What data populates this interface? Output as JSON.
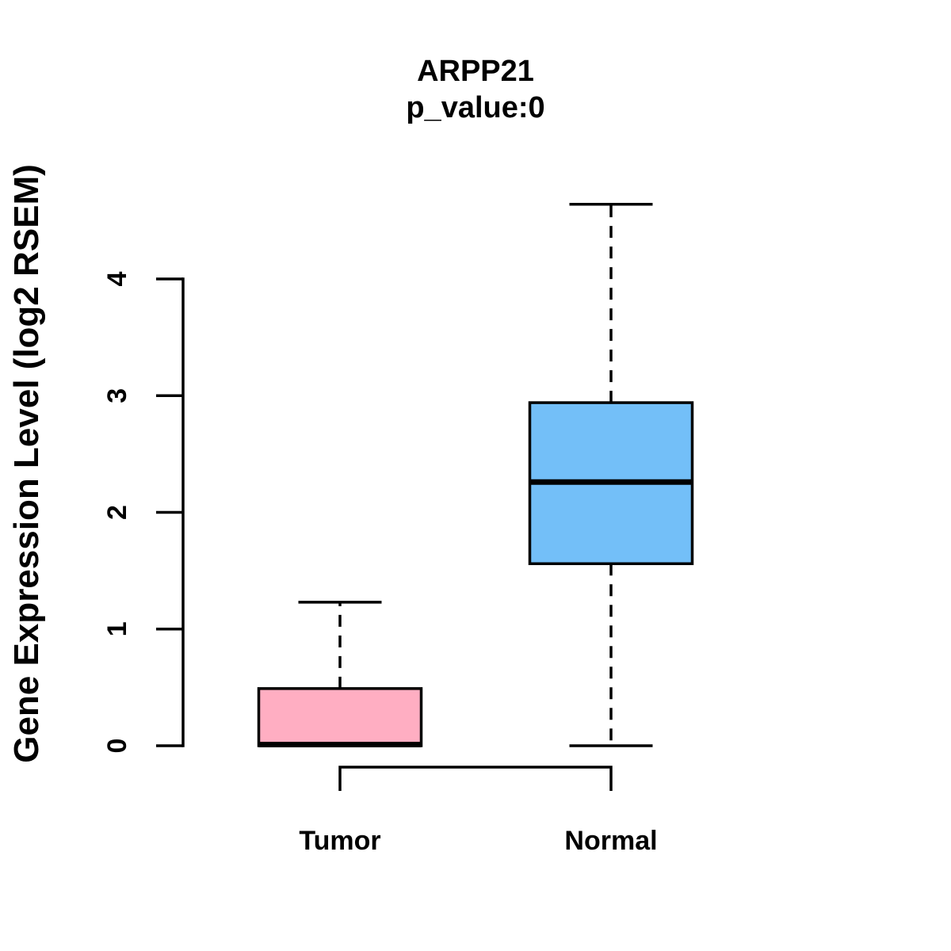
{
  "chart_data": {
    "type": "boxplot",
    "title": "ARPP21",
    "subtitle": "p_value:0",
    "ylabel": "Gene Expression Level (log2 RSEM)",
    "xlabel": "",
    "categories": [
      "Tumor",
      "Normal"
    ],
    "yticks": [
      0,
      1,
      2,
      3,
      4
    ],
    "ylim": [
      -0.25,
      4.75
    ],
    "grid": false,
    "legend": "none",
    "series": [
      {
        "name": "Tumor",
        "color": "#FFAEC2",
        "min": 0,
        "q1": 0,
        "median": 0.01,
        "q3": 0.49,
        "max": 1.23
      },
      {
        "name": "Normal",
        "color": "#73BFF8",
        "min": 0,
        "q1": 1.56,
        "median": 2.26,
        "q3": 2.94,
        "max": 4.64
      }
    ],
    "comparison_bracket": {
      "from": "Tumor",
      "to": "Normal"
    },
    "colors": {
      "box_border": "#000000",
      "median": "#000000",
      "whisker": "#000000",
      "axis": "#000000",
      "text": "#000000",
      "background": "#FFFFFF"
    }
  }
}
